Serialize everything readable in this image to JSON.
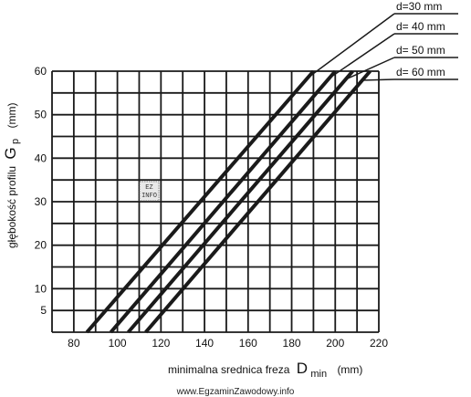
{
  "chart_data": {
    "type": "line",
    "xlabel": "minimalna srednica freza",
    "xlabel_symbol": "D",
    "xlabel_subscript": "min",
    "xlabel_unit": "(mm)",
    "ylabel": "głębokość profilu",
    "ylabel_symbol": "G",
    "ylabel_subscript": "p",
    "ylabel_unit": "(mm)",
    "xlim": [
      70,
      220
    ],
    "ylim": [
      0,
      60
    ],
    "x_ticks": [
      80,
      100,
      120,
      140,
      160,
      180,
      200,
      220
    ],
    "y_ticks": [
      5,
      10,
      20,
      30,
      40,
      50,
      60
    ],
    "grid": true,
    "series": [
      {
        "name": "d=30 mm",
        "x": [
          86,
          190
        ],
        "y": [
          0,
          60
        ]
      },
      {
        "name": "d= 40 mm",
        "x": [
          97,
          200
        ],
        "y": [
          0,
          60
        ]
      },
      {
        "name": "d= 50 mm",
        "x": [
          105,
          208
        ],
        "y": [
          0,
          60
        ]
      },
      {
        "name": "d= 60 mm",
        "x": [
          113,
          216
        ],
        "y": [
          0,
          60
        ]
      }
    ]
  },
  "watermark": "www.EgzaminZawodowy.info",
  "stamp": [
    "EZ",
    "INFO"
  ]
}
